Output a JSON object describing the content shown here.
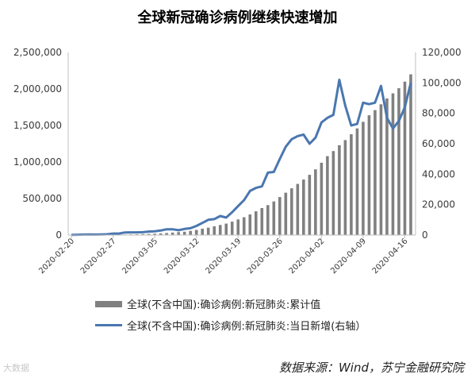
{
  "title": "全球新冠确诊病例继续快速增加",
  "source": "数据来源：Wind，苏宁金融研究院",
  "watermark": "大数据",
  "chart_data": {
    "type": "bar+line",
    "title": "全球新冠确诊病例继续快速增加",
    "x_tick_labels": [
      "2020-02-20",
      "2020-02-27",
      "2020-03-05",
      "2020-03-12",
      "2020-03-19",
      "2020-03-26",
      "2020-04-02",
      "2020-04-09",
      "2020-04-16"
    ],
    "x_start": "2020-02-20",
    "x_end": "2020-04-17",
    "y_left": {
      "min": 0,
      "max": 2500000,
      "ticks": [
        "0",
        "500,000",
        "1,000,000",
        "1,500,000",
        "2,000,000",
        "2,500,000"
      ]
    },
    "y_right": {
      "min": 0,
      "max": 120000,
      "ticks": [
        "0",
        "20,000",
        "40,000",
        "60,000",
        "80,000",
        "100,000",
        "120,000"
      ]
    },
    "grid": false,
    "legend_position": "bottom",
    "series": [
      {
        "name": "全球(不含中国):确诊病例:新冠肺炎:累计值",
        "type": "bar",
        "axis": "left",
        "color": "#808080",
        "x": [
          "2020-02-20",
          "2020-02-21",
          "2020-02-22",
          "2020-02-23",
          "2020-02-24",
          "2020-02-25",
          "2020-02-26",
          "2020-02-27",
          "2020-02-28",
          "2020-02-29",
          "2020-03-01",
          "2020-03-02",
          "2020-03-03",
          "2020-03-04",
          "2020-03-05",
          "2020-03-06",
          "2020-03-07",
          "2020-03-08",
          "2020-03-09",
          "2020-03-10",
          "2020-03-11",
          "2020-03-12",
          "2020-03-13",
          "2020-03-14",
          "2020-03-15",
          "2020-03-16",
          "2020-03-17",
          "2020-03-18",
          "2020-03-19",
          "2020-03-20",
          "2020-03-21",
          "2020-03-22",
          "2020-03-23",
          "2020-03-24",
          "2020-03-25",
          "2020-03-26",
          "2020-03-27",
          "2020-03-28",
          "2020-03-29",
          "2020-03-30",
          "2020-03-31",
          "2020-04-01",
          "2020-04-02",
          "2020-04-03",
          "2020-04-04",
          "2020-04-05",
          "2020-04-06",
          "2020-04-07",
          "2020-04-08",
          "2020-04-09",
          "2020-04-10",
          "2020-04-11",
          "2020-04-12",
          "2020-04-13",
          "2020-04-14",
          "2020-04-15",
          "2020-04-16",
          "2020-04-17"
        ],
        "values": [
          1200,
          1400,
          1700,
          2100,
          2600,
          3000,
          3700,
          4300,
          5400,
          7100,
          8900,
          10600,
          13000,
          15700,
          18600,
          23000,
          28000,
          34000,
          40000,
          46000,
          57000,
          70000,
          87000,
          101000,
          120000,
          138000,
          157000,
          184000,
          214000,
          244000,
          282000,
          325000,
          370000,
          410000,
          460000,
          520000,
          580000,
          640000,
          700000,
          760000,
          825000,
          900000,
          990000,
          1080000,
          1150000,
          1230000,
          1300000,
          1380000,
          1460000,
          1550000,
          1640000,
          1710000,
          1790000,
          1870000,
          1940000,
          2010000,
          2100000,
          2200000
        ]
      },
      {
        "name": "全球(不含中国):确诊病例:新冠肺炎:当日新增(右轴）",
        "type": "line",
        "axis": "right",
        "color": "#4a77b0",
        "x": [
          "2020-02-20",
          "2020-02-21",
          "2020-02-22",
          "2020-02-23",
          "2020-02-24",
          "2020-02-25",
          "2020-02-26",
          "2020-02-27",
          "2020-02-28",
          "2020-02-29",
          "2020-03-01",
          "2020-03-02",
          "2020-03-03",
          "2020-03-04",
          "2020-03-05",
          "2020-03-06",
          "2020-03-07",
          "2020-03-08",
          "2020-03-09",
          "2020-03-10",
          "2020-03-11",
          "2020-03-12",
          "2020-03-13",
          "2020-03-14",
          "2020-03-15",
          "2020-03-16",
          "2020-03-17",
          "2020-03-18",
          "2020-03-19",
          "2020-03-20",
          "2020-03-21",
          "2020-03-22",
          "2020-03-23",
          "2020-03-24",
          "2020-03-25",
          "2020-03-26",
          "2020-03-27",
          "2020-03-28",
          "2020-03-29",
          "2020-03-30",
          "2020-03-31",
          "2020-04-01",
          "2020-04-02",
          "2020-04-03",
          "2020-04-04",
          "2020-04-05",
          "2020-04-06",
          "2020-04-07",
          "2020-04-08",
          "2020-04-09",
          "2020-04-10",
          "2020-04-11",
          "2020-04-12",
          "2020-04-13",
          "2020-04-14",
          "2020-04-15",
          "2020-04-16",
          "2020-04-17"
        ],
        "values": [
          100,
          200,
          300,
          400,
          300,
          400,
          500,
          1000,
          1000,
          1700,
          1800,
          1800,
          1900,
          2300,
          2500,
          3000,
          3800,
          3800,
          3200,
          4000,
          4500,
          6000,
          8000,
          10000,
          10500,
          12500,
          11500,
          15000,
          19000,
          23000,
          29000,
          31000,
          32000,
          41000,
          41500,
          50000,
          58000,
          63000,
          65000,
          66000,
          60000,
          64000,
          74000,
          77000,
          79000,
          102000,
          85000,
          72000,
          73000,
          87000,
          86000,
          87000,
          98000,
          77000,
          70000,
          75000,
          84000,
          100000
        ]
      }
    ]
  }
}
